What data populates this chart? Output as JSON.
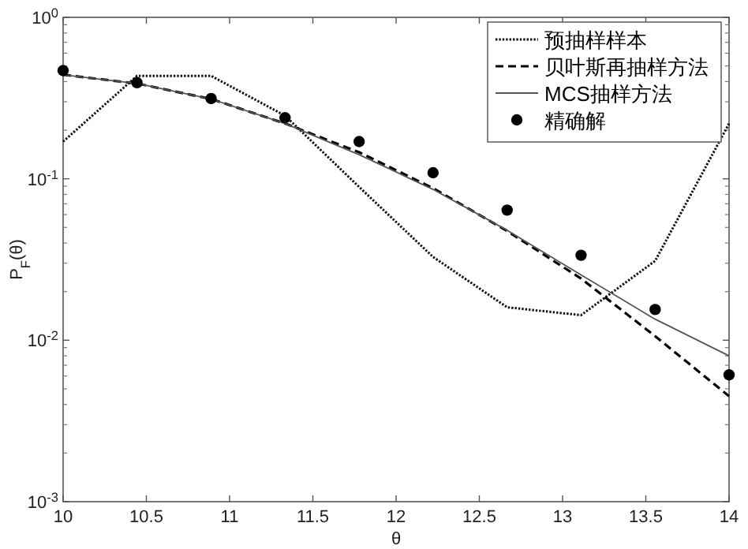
{
  "chart_data": {
    "type": "line",
    "xlabel": "θ",
    "ylabel": "P$_{F}$(θ)",
    "log": "y",
    "x": [
      10,
      10.444,
      10.889,
      11.333,
      11.778,
      12.222,
      12.667,
      13.111,
      13.556,
      14
    ],
    "xlim": [
      10,
      14
    ],
    "xticks": [
      10,
      10.5,
      11,
      11.5,
      12,
      12.5,
      13,
      13.5,
      14
    ],
    "ylim": [
      0.001,
      1
    ],
    "yticks": [
      {
        "value": 0.001,
        "label": "10$^{-3}$"
      },
      {
        "value": 0.01,
        "label": "10$^{-2}$"
      },
      {
        "value": 0.1,
        "label": "10$^{-1}$"
      },
      {
        "value": 1,
        "label": "10$^{0}$"
      }
    ],
    "legend": "top right",
    "series": [
      {
        "name": "预抽样样本",
        "line_style": "dotted",
        "color": "#111111",
        "values": [
          0.17,
          0.434,
          0.434,
          0.246,
          0.089,
          0.0328,
          0.016,
          0.0143,
          0.031,
          0.22
        ]
      },
      {
        "name": "贝叶斯再抽样方法",
        "line_style": "dashed",
        "color": "#000000",
        "values": [
          0.441,
          0.389,
          0.312,
          0.22,
          0.146,
          0.0875,
          0.0475,
          0.0241,
          0.0106,
          0.0045
        ]
      },
      {
        "name": "MCS抽样方法",
        "line_style": "solid",
        "color": "#555555",
        "values": [
          0.441,
          0.389,
          0.312,
          0.22,
          0.141,
          0.086,
          0.048,
          0.0254,
          0.0135,
          0.008
        ]
      },
      {
        "name": "精确解",
        "type": "scatter",
        "marker": "circle",
        "color": "#000000",
        "values": [
          0.468,
          0.394,
          0.314,
          0.239,
          0.17,
          0.109,
          0.064,
          0.0336,
          0.0155,
          0.0061
        ]
      }
    ]
  }
}
